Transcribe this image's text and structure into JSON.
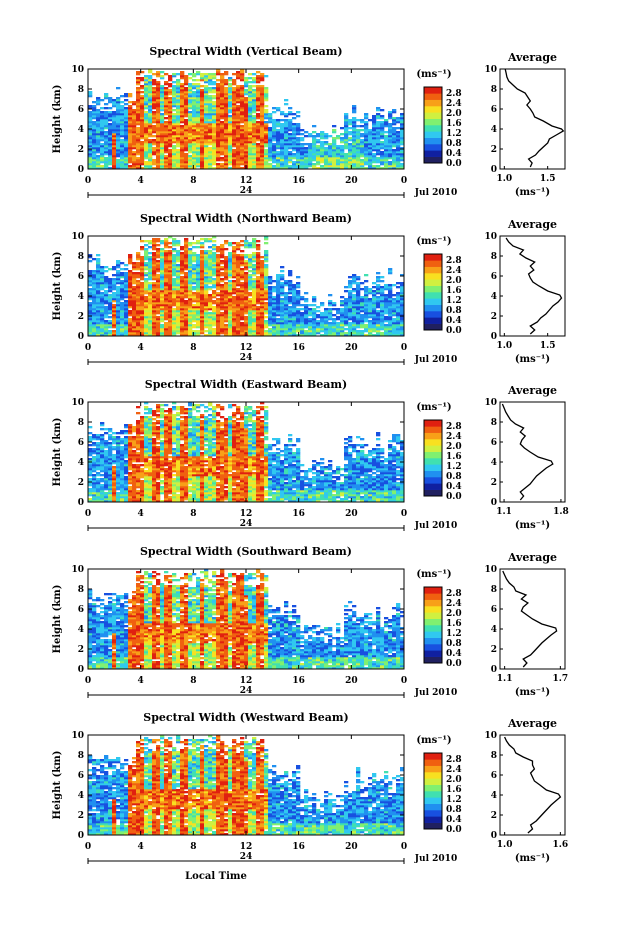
{
  "chart_data": {
    "type": "heatmap",
    "x_axis": {
      "label": "Local Time",
      "ticks": [
        "0",
        "4",
        "8",
        "12",
        "16",
        "20",
        "0"
      ],
      "range": [
        0,
        24
      ],
      "date_label": "24",
      "month_label": "Jul 2010"
    },
    "y_axis": {
      "label": "Height (km)",
      "ticks": [
        "0",
        "2",
        "4",
        "6",
        "8",
        "10"
      ],
      "range": [
        0,
        10
      ]
    },
    "colorbar": {
      "unit": "(ms⁻¹)",
      "ticks": [
        "2.8",
        "2.4",
        "2.0",
        "1.6",
        "1.2",
        "0.8",
        "0.4",
        "0.0"
      ],
      "range": [
        0,
        2.8
      ],
      "colors": [
        "#202060",
        "#1020a0",
        "#1850e0",
        "#2090f0",
        "#30c8f0",
        "#40e0b0",
        "#80f070",
        "#d0f040",
        "#f8e020",
        "#f8a018",
        "#f06010",
        "#e02010"
      ]
    },
    "average_title": "Average",
    "average_xlabel": "(ms⁻¹)",
    "panels": [
      {
        "title": "Spectral Width (Vertical Beam)",
        "avg_ticks": [
          "1.0",
          "1.5"
        ],
        "avg_range": [
          0.95,
          1.7
        ],
        "avg_profile": [
          [
            1.3,
            0.2
          ],
          [
            1.32,
            0.6
          ],
          [
            1.28,
            1.0
          ],
          [
            1.36,
            1.4
          ],
          [
            1.4,
            1.8
          ],
          [
            1.45,
            2.2
          ],
          [
            1.5,
            2.6
          ],
          [
            1.52,
            3.0
          ],
          [
            1.6,
            3.4
          ],
          [
            1.68,
            3.8
          ],
          [
            1.66,
            4.0
          ],
          [
            1.55,
            4.3
          ],
          [
            1.45,
            4.8
          ],
          [
            1.35,
            5.2
          ],
          [
            1.33,
            5.6
          ],
          [
            1.3,
            6.0
          ],
          [
            1.26,
            6.4
          ],
          [
            1.3,
            6.8
          ],
          [
            1.27,
            7.2
          ],
          [
            1.24,
            7.6
          ],
          [
            1.15,
            8.0
          ],
          [
            1.1,
            8.4
          ],
          [
            1.05,
            8.8
          ],
          [
            1.03,
            9.2
          ],
          [
            1.02,
            9.6
          ],
          [
            1.01,
            10.0
          ]
        ]
      },
      {
        "title": "Spectral Width (Northward Beam)",
        "avg_ticks": [
          "1.0",
          "1.5"
        ],
        "avg_range": [
          0.95,
          1.7
        ],
        "avg_profile": [
          [
            1.3,
            0.2
          ],
          [
            1.35,
            0.6
          ],
          [
            1.3,
            1.0
          ],
          [
            1.38,
            1.4
          ],
          [
            1.42,
            1.8
          ],
          [
            1.48,
            2.2
          ],
          [
            1.52,
            2.6
          ],
          [
            1.56,
            3.0
          ],
          [
            1.62,
            3.4
          ],
          [
            1.66,
            3.8
          ],
          [
            1.64,
            4.1
          ],
          [
            1.5,
            4.5
          ],
          [
            1.4,
            5.0
          ],
          [
            1.33,
            5.4
          ],
          [
            1.3,
            5.8
          ],
          [
            1.28,
            6.2
          ],
          [
            1.34,
            6.6
          ],
          [
            1.3,
            7.0
          ],
          [
            1.35,
            7.4
          ],
          [
            1.25,
            7.8
          ],
          [
            1.18,
            8.2
          ],
          [
            1.22,
            8.6
          ],
          [
            1.1,
            9.0
          ],
          [
            1.05,
            9.4
          ],
          [
            1.02,
            9.8
          ]
        ]
      },
      {
        "title": "Spectral Width (Eastward Beam)",
        "avg_ticks": [
          "1.1",
          "1.8"
        ],
        "avg_range": [
          1.05,
          1.85
        ],
        "avg_profile": [
          [
            1.3,
            0.2
          ],
          [
            1.34,
            0.6
          ],
          [
            1.3,
            1.0
          ],
          [
            1.36,
            1.4
          ],
          [
            1.42,
            1.8
          ],
          [
            1.46,
            2.2
          ],
          [
            1.5,
            2.6
          ],
          [
            1.56,
            3.0
          ],
          [
            1.62,
            3.4
          ],
          [
            1.7,
            3.8
          ],
          [
            1.68,
            4.1
          ],
          [
            1.52,
            4.5
          ],
          [
            1.42,
            5.0
          ],
          [
            1.35,
            5.4
          ],
          [
            1.3,
            5.8
          ],
          [
            1.32,
            6.2
          ],
          [
            1.36,
            6.6
          ],
          [
            1.3,
            7.0
          ],
          [
            1.34,
            7.4
          ],
          [
            1.24,
            7.8
          ],
          [
            1.18,
            8.2
          ],
          [
            1.15,
            8.6
          ],
          [
            1.12,
            9.0
          ],
          [
            1.1,
            9.4
          ],
          [
            1.08,
            9.8
          ]
        ]
      },
      {
        "title": "Spectral Width (Southward Beam)",
        "avg_ticks": [
          "1.1",
          "1.7"
        ],
        "avg_range": [
          1.05,
          1.75
        ],
        "avg_profile": [
          [
            1.3,
            0.2
          ],
          [
            1.34,
            0.6
          ],
          [
            1.3,
            1.0
          ],
          [
            1.38,
            1.4
          ],
          [
            1.42,
            1.8
          ],
          [
            1.46,
            2.2
          ],
          [
            1.5,
            2.6
          ],
          [
            1.55,
            3.0
          ],
          [
            1.6,
            3.4
          ],
          [
            1.66,
            3.8
          ],
          [
            1.65,
            4.1
          ],
          [
            1.5,
            4.5
          ],
          [
            1.4,
            5.0
          ],
          [
            1.34,
            5.4
          ],
          [
            1.28,
            5.8
          ],
          [
            1.3,
            6.2
          ],
          [
            1.35,
            6.6
          ],
          [
            1.28,
            7.0
          ],
          [
            1.33,
            7.4
          ],
          [
            1.22,
            7.8
          ],
          [
            1.2,
            8.2
          ],
          [
            1.15,
            8.6
          ],
          [
            1.12,
            9.0
          ],
          [
            1.1,
            9.4
          ],
          [
            1.08,
            9.8
          ]
        ]
      },
      {
        "title": "Spectral Width (Westward Beam)",
        "avg_ticks": [
          "1.0",
          "1.6"
        ],
        "avg_range": [
          0.95,
          1.65
        ],
        "avg_profile": [
          [
            1.25,
            0.2
          ],
          [
            1.3,
            0.6
          ],
          [
            1.28,
            1.0
          ],
          [
            1.34,
            1.4
          ],
          [
            1.38,
            1.8
          ],
          [
            1.42,
            2.2
          ],
          [
            1.46,
            2.6
          ],
          [
            1.5,
            3.0
          ],
          [
            1.55,
            3.4
          ],
          [
            1.6,
            3.8
          ],
          [
            1.58,
            4.1
          ],
          [
            1.45,
            4.5
          ],
          [
            1.38,
            5.0
          ],
          [
            1.32,
            5.4
          ],
          [
            1.3,
            5.8
          ],
          [
            1.28,
            6.2
          ],
          [
            1.32,
            6.6
          ],
          [
            1.3,
            7.0
          ],
          [
            1.3,
            7.4
          ],
          [
            1.2,
            7.8
          ],
          [
            1.12,
            8.2
          ],
          [
            1.1,
            8.6
          ],
          [
            1.05,
            9.0
          ],
          [
            1.02,
            9.4
          ],
          [
            1.0,
            9.8
          ]
        ]
      }
    ]
  }
}
